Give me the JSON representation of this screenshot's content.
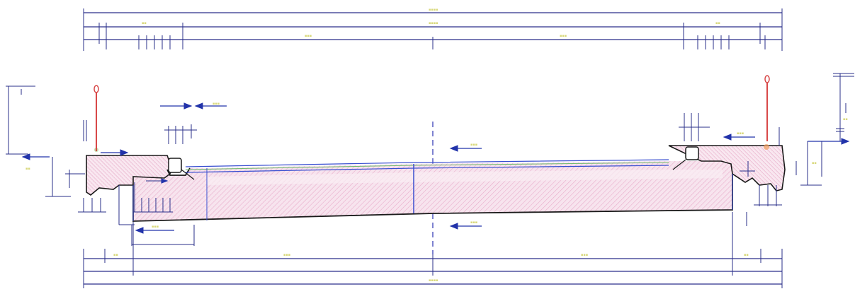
{
  "drawing": {
    "colors": {
      "dimension": "#2a2f8a",
      "outline": "#1a1a1a",
      "hatch": "#e8a8c8",
      "hatch_fill": "#f7e4ee",
      "lifting_point": "#d84848",
      "center_line": "#2a2fb0",
      "arrow": "#2233aa",
      "faint_label": "#d8d87a"
    },
    "icons": {
      "lifting_point": "lifting-eye-icon",
      "arrow": "direction-arrow-icon"
    }
  }
}
